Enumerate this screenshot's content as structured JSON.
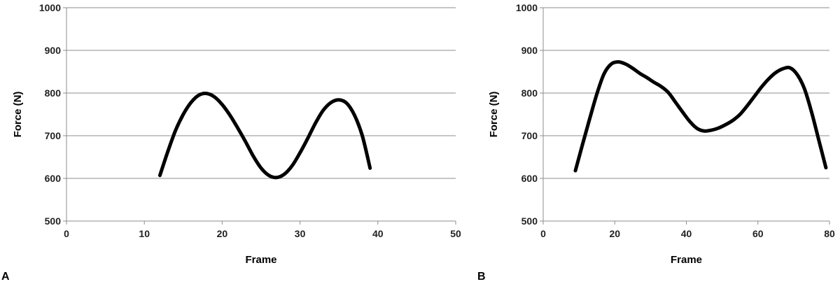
{
  "chart_data": [
    {
      "type": "line",
      "panel_label": "A",
      "title": "",
      "xlabel": "Frame",
      "ylabel": "Force (N)",
      "xlim": [
        0,
        50
      ],
      "ylim": [
        500,
        1000
      ],
      "x_ticks": [
        0,
        10,
        20,
        30,
        40,
        50
      ],
      "y_ticks": [
        500,
        600,
        700,
        800,
        900,
        1000
      ],
      "grid": "horizontal",
      "legend": "none",
      "series": [
        {
          "x": [
            12,
            13,
            14,
            15,
            16,
            17,
            18,
            19,
            20,
            21,
            22,
            23,
            24,
            25,
            26,
            27,
            28,
            29,
            30,
            31,
            32,
            33,
            34,
            35,
            36,
            37,
            38,
            39
          ],
          "y": [
            607,
            662,
            712,
            750,
            778,
            795,
            799,
            791,
            773,
            748,
            718,
            686,
            652,
            624,
            607,
            602,
            610,
            630,
            660,
            694,
            730,
            760,
            778,
            784,
            776,
            748,
            700,
            624
          ]
        }
      ]
    },
    {
      "type": "line",
      "panel_label": "B",
      "title": "",
      "xlabel": "Frame",
      "ylabel": "Force (N)",
      "xlim": [
        0,
        80
      ],
      "ylim": [
        500,
        1000
      ],
      "x_ticks": [
        0,
        20,
        40,
        60,
        80
      ],
      "y_ticks": [
        500,
        600,
        700,
        800,
        900,
        1000
      ],
      "grid": "horizontal",
      "legend": "none",
      "series": [
        {
          "x": [
            9,
            11,
            13,
            15,
            17,
            19,
            21,
            23,
            25,
            27,
            29,
            31,
            33,
            35,
            37,
            39,
            41,
            43,
            45,
            47,
            49,
            51,
            53,
            55,
            57,
            59,
            61,
            63,
            65,
            67,
            69,
            71,
            73,
            75,
            77,
            79
          ],
          "y": [
            618,
            680,
            740,
            798,
            845,
            868,
            873,
            868,
            858,
            846,
            836,
            825,
            815,
            801,
            778,
            755,
            733,
            717,
            711,
            713,
            718,
            726,
            736,
            750,
            770,
            792,
            814,
            833,
            848,
            857,
            859,
            843,
            810,
            755,
            690,
            625
          ]
        }
      ]
    }
  ]
}
